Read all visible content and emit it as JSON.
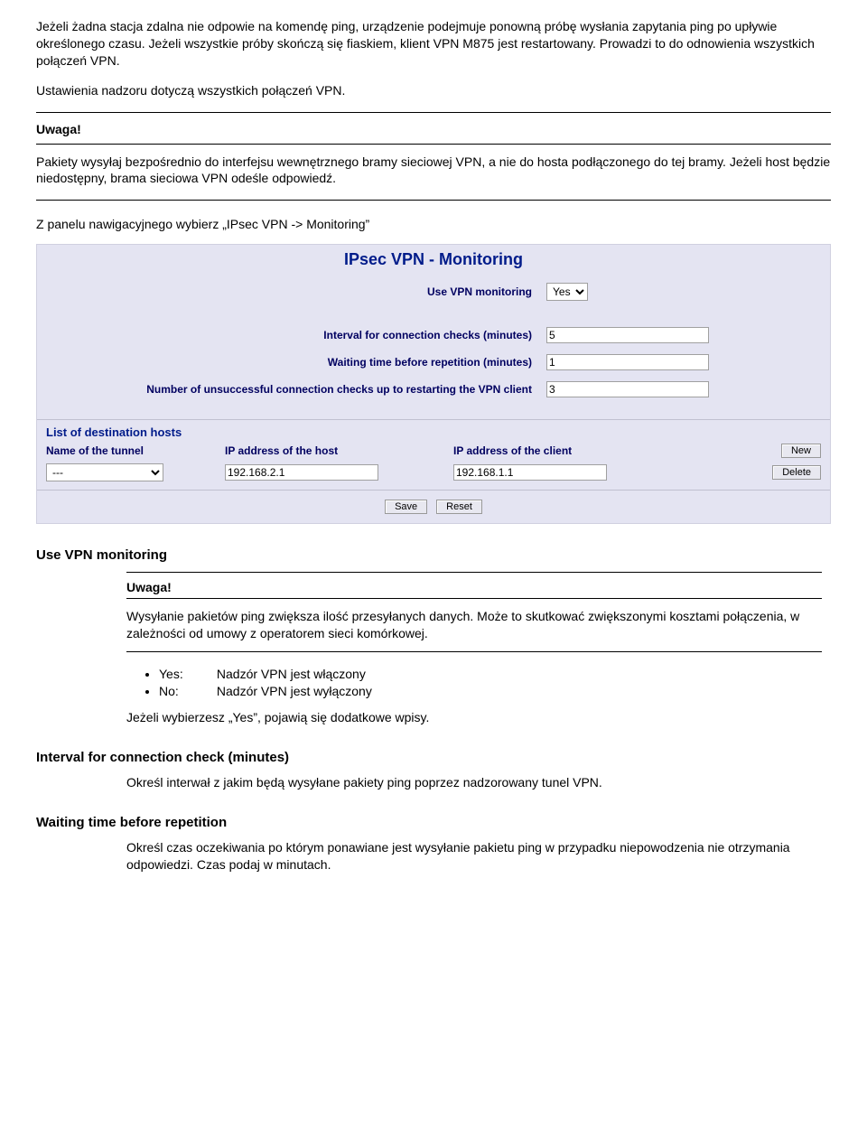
{
  "doc": {
    "p1": "Jeżeli żadna stacja zdalna nie odpowie na komendę ping, urządzenie podejmuje ponowną próbę wysłania zapytania ping po upływie określonego czasu. Jeżeli wszystkie próby skończą się fiaskiem, klient VPN M875 jest restartowany. Prowadzi to do odnowienia wszystkich połączeń VPN.",
    "p2": "Ustawienia nadzoru dotyczą wszystkich połączeń VPN.",
    "uwaga1_title": "Uwaga!",
    "uwaga1_body": "Pakiety wysyłaj bezpośrednio do interfejsu wewnętrznego bramy sieciowej VPN, a nie do hosta podłączonego do tej bramy. Jeżeli host będzie niedostępny, brama sieciowa VPN odeśle odpowiedź.",
    "instruction": "Z panelu nawigacyjnego wybierz „IPsec VPN -> Monitoring”"
  },
  "panel": {
    "title": "IPsec VPN - Monitoring",
    "use_label": "Use VPN monitoring",
    "use_value": "Yes",
    "interval_label": "Interval for connection checks (minutes)",
    "interval_value": "5",
    "wait_label": "Waiting time before repetition (minutes)",
    "wait_value": "1",
    "unsucc_label": "Number of unsuccessful connection checks up to restarting the VPN client",
    "unsucc_value": "3",
    "dest_heading": "List of destination hosts",
    "col_tunnel": "Name of the tunnel",
    "col_host": "IP address of the host",
    "col_client": "IP address of the client",
    "tunnel_value": "---",
    "host_value": "192.168.2.1",
    "client_value": "192.168.1.1",
    "btn_new": "New",
    "btn_delete": "Delete",
    "btn_save": "Save",
    "btn_reset": "Reset"
  },
  "lower": {
    "h_use": "Use VPN monitoring",
    "uwaga2_title": "Uwaga!",
    "uwaga2_body": "Wysyłanie pakietów ping zwiększa ilość przesyłanych danych. Może to skutkować zwiększonymi kosztami połączenia, w zależności od umowy z operatorem sieci komórkowej.",
    "yes_k": "Yes:",
    "yes_v": "Nadzór VPN jest włączony",
    "no_k": "No:",
    "no_v": "Nadzór VPN jest wyłączony",
    "yes_note": "Jeżeli wybierzesz „Yes”, pojawią się dodatkowe wpisy.",
    "h_interval": "Interval for connection check (minutes)",
    "interval_body": "Określ interwał z jakim będą wysyłane pakiety ping poprzez nadzorowany tunel VPN.",
    "h_wait": "Waiting time before repetition",
    "wait_body": "Określ czas oczekiwania po którym ponawiane jest wysyłanie pakietu ping w przypadku niepowodzenia nie otrzymania odpowiedzi. Czas podaj w minutach."
  }
}
